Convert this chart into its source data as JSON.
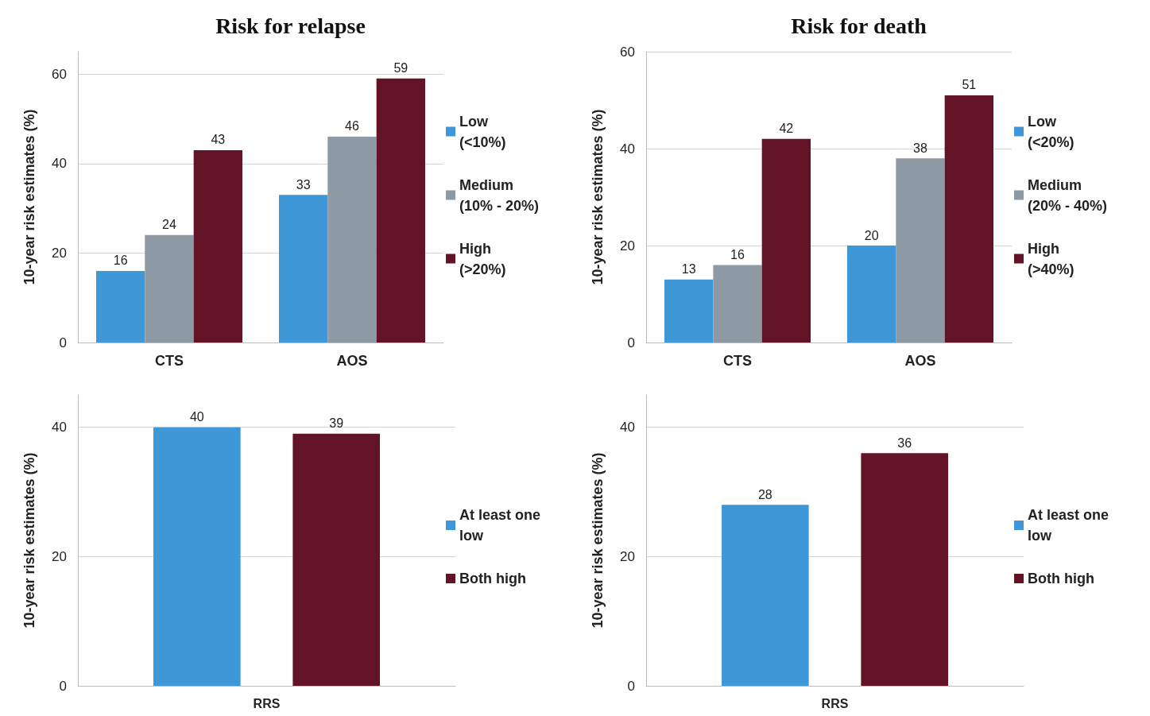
{
  "chart_data": [
    {
      "type": "bar",
      "title": "Risk for relapse",
      "ylabel": "10-year risk estimates (%)",
      "categories": [
        "CTS",
        "AOS"
      ],
      "series": [
        {
          "name": "Low (<10%)",
          "color": "#3e97d6",
          "values": [
            16,
            33
          ]
        },
        {
          "name": "Medium (10% - 20%)",
          "color": "#8e9aa3",
          "values": [
            24,
            46
          ]
        },
        {
          "name": "High (>20%)",
          "color": "#631326",
          "values": [
            43,
            59
          ]
        }
      ],
      "ylim": [
        0,
        65
      ],
      "yticks": [
        0,
        20,
        40,
        60
      ],
      "grid": "y",
      "legend": "right",
      "data_labels": true
    },
    {
      "type": "bar",
      "title": "Risk for death",
      "ylabel": "10-year risk estimates (%)",
      "categories": [
        "CTS",
        "AOS"
      ],
      "series": [
        {
          "name": "Low (<20%)",
          "color": "#3e97d6",
          "values": [
            13,
            20
          ]
        },
        {
          "name": "Medium (20% - 40%)",
          "color": "#8e9aa3",
          "values": [
            16,
            38
          ]
        },
        {
          "name": "High (>40%)",
          "color": "#631326",
          "values": [
            42,
            51
          ]
        }
      ],
      "ylim": [
        0,
        60
      ],
      "yticks": [
        0,
        20,
        40,
        60
      ],
      "grid": "y",
      "legend": "right",
      "data_labels": true
    },
    {
      "type": "bar",
      "ylabel": "10-year risk estimates (%)",
      "categories": [
        "RRS"
      ],
      "series": [
        {
          "name": "At least one low",
          "color": "#3e97d6",
          "values": [
            40
          ]
        },
        {
          "name": "Both high",
          "color": "#631326",
          "values": [
            39
          ]
        }
      ],
      "ylim": [
        0,
        45
      ],
      "yticks": [
        0,
        20,
        40
      ],
      "grid": "y",
      "legend": "right",
      "data_labels": true
    },
    {
      "type": "bar",
      "ylabel": "10-year risk estimates (%)",
      "categories": [
        "RRS"
      ],
      "series": [
        {
          "name": "At least one low",
          "color": "#3e97d6",
          "values": [
            28
          ]
        },
        {
          "name": "Both high",
          "color": "#631326",
          "values": [
            36
          ]
        }
      ],
      "ylim": [
        0,
        45
      ],
      "yticks": [
        0,
        20,
        40
      ],
      "grid": "y",
      "legend": "right",
      "data_labels": true
    }
  ]
}
